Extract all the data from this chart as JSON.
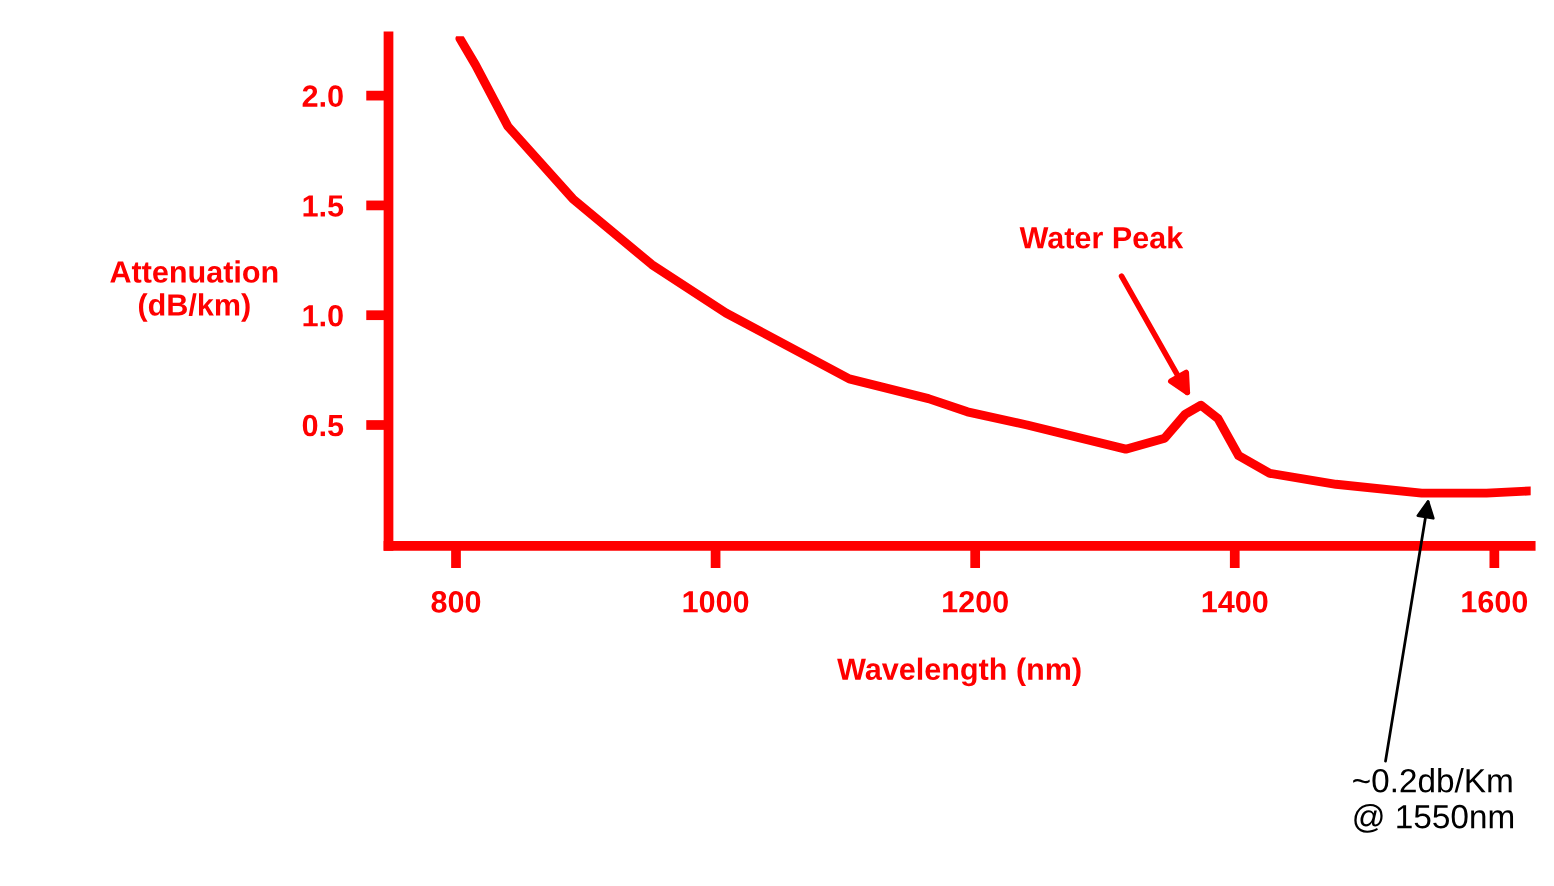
{
  "chart_data": {
    "type": "line",
    "xlabel": "Wavelength (nm)",
    "ylabel": "Attenuation\n(dB/km)",
    "x": [
      803,
      815,
      840,
      890,
      951,
      1008,
      1103,
      1164,
      1194,
      1240,
      1316,
      1346,
      1362,
      1374,
      1387,
      1403,
      1427,
      1478,
      1544,
      1594,
      1628
    ],
    "series": [
      {
        "color": "#ff0000",
        "values": [
          2.26,
          2.14,
          1.86,
          1.53,
          1.23,
          1.01,
          0.71,
          0.62,
          0.56,
          0.5,
          0.39,
          0.44,
          0.55,
          0.59,
          0.53,
          0.36,
          0.28,
          0.23,
          0.19,
          0.19,
          0.2
        ]
      }
    ],
    "xlim": [
      748,
      1628
    ],
    "ylim": [
      -0.05,
      2.27
    ],
    "xticks": [
      800,
      1000,
      1200,
      1400,
      1600
    ],
    "yticks": [
      {
        "value": 0.5,
        "label": "0.5"
      },
      {
        "value": 1,
        "label": "1.0"
      },
      {
        "value": 1.5,
        "label": "1.5"
      },
      {
        "value": 2,
        "label": "2.0"
      }
    ],
    "annotations": [
      {
        "text": "Water Peak",
        "x": 1370,
        "y": 0.58
      },
      {
        "text": "~0.2db/Km\n@ 1550nm",
        "x": 1550,
        "y": 0.19
      }
    ],
    "grid": false,
    "legend": false,
    "marker": "none",
    "line_style": "solid"
  }
}
